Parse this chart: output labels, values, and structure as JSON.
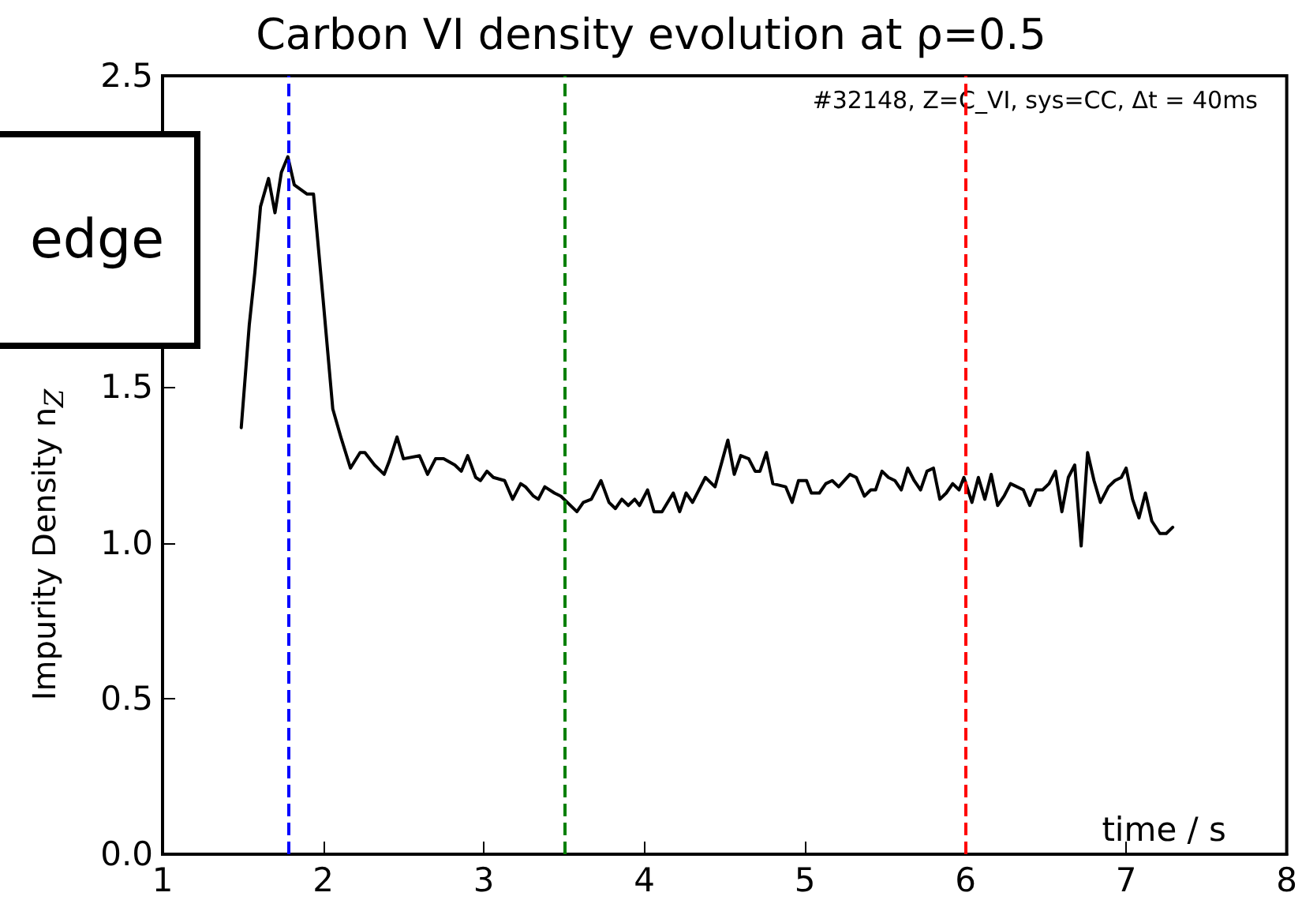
{
  "chart_data": {
    "type": "line",
    "title": "Carbon VI density evolution at ρ=0.5",
    "xlabel": "time / s",
    "ylabel": "Impurity Density n$_{Z}$",
    "annotations": [
      "#32148, Z=C_VI, sys=CC, Δt = 40ms",
      "edge"
    ],
    "x": [
      1.49,
      1.54,
      1.575,
      1.61,
      1.66,
      1.7,
      1.74,
      1.78,
      1.82,
      1.9,
      1.94,
      2.0,
      2.06,
      2.11,
      2.17,
      2.23,
      2.26,
      2.32,
      2.38,
      2.41,
      2.46,
      2.5,
      2.6,
      2.65,
      2.7,
      2.75,
      2.82,
      2.86,
      2.9,
      2.95,
      2.98,
      3.02,
      3.06,
      3.13,
      3.18,
      3.23,
      3.26,
      3.31,
      3.34,
      3.38,
      3.44,
      3.48,
      3.58,
      3.62,
      3.67,
      3.73,
      3.78,
      3.82,
      3.86,
      3.9,
      3.94,
      3.97,
      4.02,
      4.06,
      4.11,
      4.18,
      4.22,
      4.26,
      4.3,
      4.38,
      4.44,
      4.52,
      4.56,
      4.6,
      4.65,
      4.69,
      4.72,
      4.76,
      4.8,
      4.88,
      4.92,
      4.96,
      5.01,
      5.04,
      5.09,
      5.13,
      5.17,
      5.21,
      5.28,
      5.32,
      5.37,
      5.41,
      5.44,
      5.48,
      5.52,
      5.56,
      5.6,
      5.64,
      5.68,
      5.72,
      5.76,
      5.8,
      5.84,
      5.88,
      5.92,
      5.96,
      5.99,
      6.04,
      6.08,
      6.12,
      6.16,
      6.2,
      6.24,
      6.28,
      6.36,
      6.4,
      6.44,
      6.48,
      6.52,
      6.56,
      6.6,
      6.64,
      6.68,
      6.72,
      6.76,
      6.8,
      6.84,
      6.89,
      6.93,
      6.97,
      7.0,
      7.04,
      7.08,
      7.12,
      7.16,
      7.21,
      7.25,
      7.29
    ],
    "series": [
      {
        "color": "#000000",
        "values": [
          1.37,
          1.7,
          1.87,
          2.08,
          2.17,
          2.06,
          2.19,
          2.24,
          2.15,
          2.12,
          2.12,
          1.78,
          1.43,
          1.34,
          1.24,
          1.29,
          1.29,
          1.25,
          1.22,
          1.26,
          1.34,
          1.27,
          1.28,
          1.22,
          1.27,
          1.27,
          1.25,
          1.23,
          1.28,
          1.21,
          1.2,
          1.23,
          1.21,
          1.2,
          1.14,
          1.19,
          1.18,
          1.15,
          1.14,
          1.18,
          1.16,
          1.15,
          1.1,
          1.13,
          1.14,
          1.2,
          1.13,
          1.11,
          1.14,
          1.12,
          1.14,
          1.12,
          1.17,
          1.1,
          1.1,
          1.16,
          1.1,
          1.16,
          1.13,
          1.21,
          1.18,
          1.33,
          1.22,
          1.28,
          1.27,
          1.23,
          1.23,
          1.29,
          1.19,
          1.18,
          1.13,
          1.2,
          1.2,
          1.16,
          1.16,
          1.19,
          1.2,
          1.18,
          1.22,
          1.21,
          1.15,
          1.17,
          1.17,
          1.23,
          1.21,
          1.2,
          1.17,
          1.24,
          1.2,
          1.17,
          1.23,
          1.24,
          1.14,
          1.16,
          1.19,
          1.17,
          1.21,
          1.13,
          1.21,
          1.14,
          1.22,
          1.12,
          1.15,
          1.19,
          1.17,
          1.12,
          1.17,
          1.17,
          1.19,
          1.23,
          1.1,
          1.21,
          1.25,
          0.99,
          1.29,
          1.2,
          1.13,
          1.18,
          1.2,
          1.21,
          1.24,
          1.14,
          1.08,
          1.16,
          1.07,
          1.03,
          1.03,
          1.05
        ]
      }
    ],
    "xlim": [
      1,
      8
    ],
    "xticks": [
      1,
      2,
      3,
      4,
      5,
      6,
      7,
      8
    ],
    "ylim": [
      0,
      2.5
    ],
    "yticks": [
      {
        "value": 0,
        "label": "0.0"
      },
      0.5,
      {
        "value": 1,
        "label": "1.0"
      },
      1.5,
      {
        "value": 2,
        "label": null
      },
      2.5
    ],
    "ref_lines": [
      {
        "axis": "x",
        "value": 1.78,
        "color": "#0000ff",
        "line_style": "dashed"
      },
      {
        "axis": "x",
        "value": 3.5,
        "color": "#008000",
        "line_style": "dashed"
      },
      {
        "axis": "x",
        "value": 6.0,
        "color": "#ff0000",
        "line_style": "dashed"
      }
    ],
    "grid": false,
    "marker": "none",
    "line_style": "solid"
  }
}
